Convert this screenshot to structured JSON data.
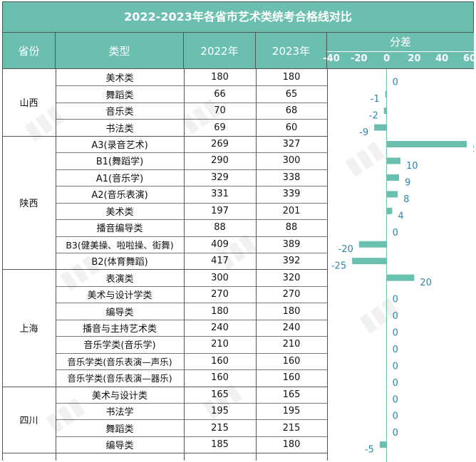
{
  "title": "2022-2023年各省市艺术类统考合格线对比",
  "headers": {
    "province": "省份",
    "type": "类型",
    "y2022": "2022年",
    "y2023": "2023年",
    "diff": "分差"
  },
  "chart_data": {
    "type": "bar",
    "orientation": "horizontal",
    "title": "分差",
    "xlim": [
      -40,
      60
    ],
    "xticks": [
      "-40",
      "-20",
      "0",
      "20",
      "40",
      "60"
    ],
    "bar_color": "#6bbfae",
    "label_color": "#2e86a8",
    "groups": [
      {
        "province": "山西",
        "rows": [
          {
            "type": "美术类",
            "y2022": 180,
            "y2023": 180,
            "diff": 0
          },
          {
            "type": "舞蹈类",
            "y2022": 66,
            "y2023": 65,
            "diff": -1
          },
          {
            "type": "音乐类",
            "y2022": 70,
            "y2023": 68,
            "diff": -2
          },
          {
            "type": "书法类",
            "y2022": 69,
            "y2023": 60,
            "diff": -9
          }
        ]
      },
      {
        "province": "陕西",
        "rows": [
          {
            "type": "A3(录音艺术)",
            "y2022": 269,
            "y2023": 327,
            "diff": 58
          },
          {
            "type": "B1(舞蹈学)",
            "y2022": 290,
            "y2023": 300,
            "diff": 10
          },
          {
            "type": "A1(音乐学)",
            "y2022": 329,
            "y2023": 338,
            "diff": 9
          },
          {
            "type": "A2(音乐表演)",
            "y2022": 331,
            "y2023": 339,
            "diff": 8
          },
          {
            "type": "美术类",
            "y2022": 197,
            "y2023": 201,
            "diff": 4
          },
          {
            "type": "播音编导类",
            "y2022": 88,
            "y2023": 88,
            "diff": 0
          },
          {
            "type": "B3(健美操、啦啦操、街舞)",
            "y2022": 409,
            "y2023": 389,
            "diff": -20
          },
          {
            "type": "B2(体育舞蹈)",
            "y2022": 417,
            "y2023": 392,
            "diff": -25
          }
        ]
      },
      {
        "province": "上海",
        "rows": [
          {
            "type": "表演类",
            "y2022": 300,
            "y2023": 320,
            "diff": 20
          },
          {
            "type": "美术与设计学类",
            "y2022": 270,
            "y2023": 270,
            "diff": 0
          },
          {
            "type": "编导类",
            "y2022": 180,
            "y2023": 180,
            "diff": 0
          },
          {
            "type": "播音与主持艺术类",
            "y2022": 240,
            "y2023": 240,
            "diff": 0
          },
          {
            "type": "音乐学类(音乐学)",
            "y2022": 210,
            "y2023": 210,
            "diff": 0
          },
          {
            "type": "音乐学类(音乐表演—声乐)",
            "y2022": 160,
            "y2023": 160,
            "diff": 0
          },
          {
            "type": "音乐学类(音乐表演—器乐)",
            "y2022": 160,
            "y2023": 160,
            "diff": 0
          }
        ]
      },
      {
        "province": "四川",
        "rows": [
          {
            "type": "美术与设计类",
            "y2022": 165,
            "y2023": 165,
            "diff": 0
          },
          {
            "type": "书法学",
            "y2022": 195,
            "y2023": 195,
            "diff": 0
          },
          {
            "type": "舞蹈类",
            "y2022": 215,
            "y2023": 215,
            "diff": 0
          },
          {
            "type": "编导类",
            "y2022": 185,
            "y2023": 180,
            "diff": -5
          }
        ]
      }
    ]
  }
}
